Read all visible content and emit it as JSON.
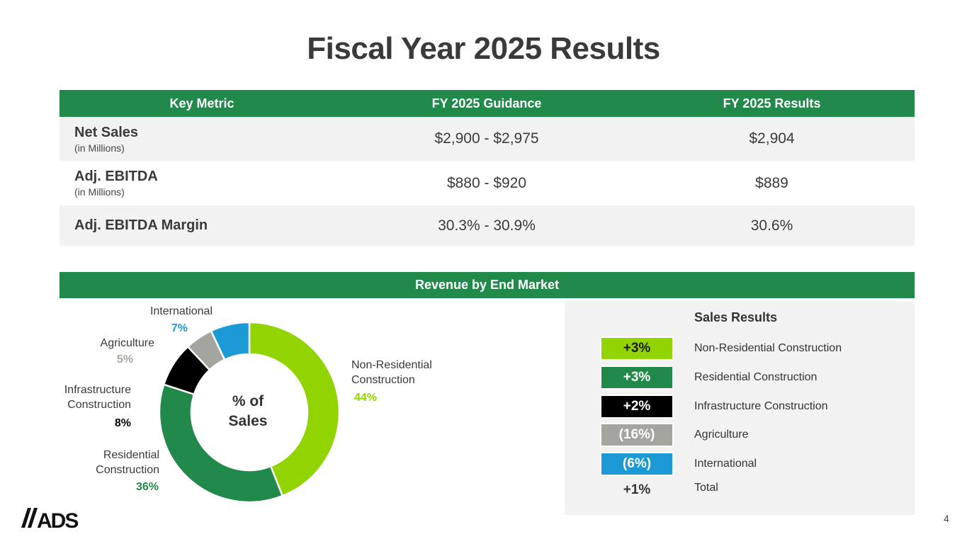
{
  "title": "Fiscal Year 2025 Results",
  "metrics_table": {
    "headers": [
      "Key Metric",
      "FY 2025 Guidance",
      "FY 2025 Results"
    ],
    "rows": [
      {
        "name": "Net Sales",
        "sub": "(in Millions)",
        "guidance": "$2,900 - $2,975",
        "result": "$2,904"
      },
      {
        "name": "Adj. EBITDA",
        "sub": "(in Millions)",
        "guidance": "$880 - $920",
        "result": "$889"
      },
      {
        "name": "Adj. EBITDA Margin",
        "sub": "",
        "guidance": "30.3% - 30.9%",
        "result": "30.6%"
      }
    ]
  },
  "revenue_section_title": "Revenue by End Market",
  "donut_center": [
    "% of",
    "Sales"
  ],
  "donut_labels": {
    "non_res": [
      "Non-Residential",
      "Construction"
    ],
    "res": [
      "Residential",
      "Construction"
    ],
    "infra": [
      "Infrastructure",
      "Construction"
    ],
    "agri": [
      "Agriculture"
    ],
    "intl": [
      "International"
    ]
  },
  "chart_data": {
    "type": "pie",
    "title": "% of Sales",
    "categories": [
      "Non-Residential Construction",
      "Residential Construction",
      "Infrastructure Construction",
      "Agriculture",
      "International"
    ],
    "values": [
      44,
      36,
      8,
      5,
      7
    ],
    "value_labels": [
      "44%",
      "36%",
      "8%",
      "5%",
      "7%"
    ],
    "colors": [
      "#92d400",
      "#218a4a",
      "#000000",
      "#a5a5a0",
      "#1b9ad6"
    ]
  },
  "sales_results": {
    "title": "Sales Results",
    "items": [
      {
        "value": "+3%",
        "label": "Non-Residential Construction",
        "bg": "#92d400",
        "fg": "#1a1a1a"
      },
      {
        "value": "+3%",
        "label": "Residential Construction",
        "bg": "#218a4a",
        "fg": "#ffffff"
      },
      {
        "value": "+2%",
        "label": "Infrastructure Construction",
        "bg": "#000000",
        "fg": "#ffffff"
      },
      {
        "value": "(16%)",
        "label": "Agriculture",
        "bg": "#a5a5a0",
        "fg": "#ffffff"
      },
      {
        "value": "(6%)",
        "label": "International",
        "bg": "#1b9ad6",
        "fg": "#ffffff"
      }
    ],
    "total": {
      "value": "+1%",
      "label": "Total"
    }
  },
  "logo_text": "//ADS",
  "page_number": "4"
}
